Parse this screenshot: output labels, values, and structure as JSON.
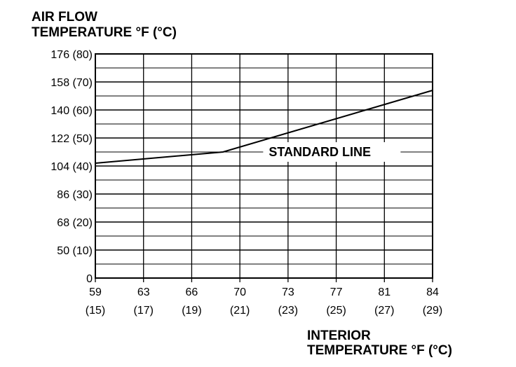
{
  "chart_data": {
    "type": "line",
    "ylabel_lines": [
      "AIR FLOW",
      "TEMPERATURE °F (°C)"
    ],
    "xlabel_lines": [
      "INTERIOR",
      "TEMPERATURE °F (°C)"
    ],
    "x_ticks": [
      {
        "f": "59",
        "c": "(15)"
      },
      {
        "f": "63",
        "c": "(17)"
      },
      {
        "f": "66",
        "c": "(19)"
      },
      {
        "f": "70",
        "c": "(21)"
      },
      {
        "f": "73",
        "c": "(23)"
      },
      {
        "f": "77",
        "c": "(25)"
      },
      {
        "f": "81",
        "c": "(27)"
      },
      {
        "f": "84",
        "c": "(29)"
      }
    ],
    "y_ticks": [
      {
        "label": "0",
        "value_c": 0
      },
      {
        "label": "50 (10)",
        "value_c": 10
      },
      {
        "label": "68 (20)",
        "value_c": 20
      },
      {
        "label": "86 (30)",
        "value_c": 30
      },
      {
        "label": "104 (40)",
        "value_c": 40
      },
      {
        "label": "122 (50)",
        "value_c": 50
      },
      {
        "label": "140 (60)",
        "value_c": 60
      },
      {
        "label": "158 (70)",
        "value_c": 70
      },
      {
        "label": "176 (80)",
        "value_c": 80
      }
    ],
    "xlim_c": [
      15,
      29
    ],
    "ylim_c": [
      0,
      80
    ],
    "minor_grid_y_step_c": 5,
    "grid": true,
    "series": [
      {
        "x_c": [
          15,
          20.3,
          29
        ],
        "y_c": [
          41,
          45,
          67
        ]
      }
    ],
    "annotations": [
      {
        "text": "STANDARD LINE",
        "x_c": 22.2,
        "y_c": 44
      }
    ]
  }
}
